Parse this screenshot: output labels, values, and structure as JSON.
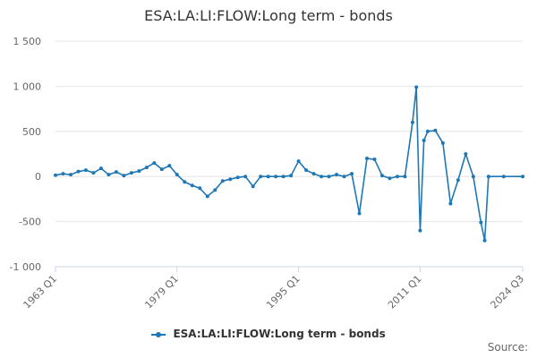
{
  "title": "ESA:LA:LI:FLOW:Long term - bonds",
  "source_label": "Source:",
  "colors": {
    "series": "#1f77b4",
    "grid": "#e6e6e6",
    "axis": "#ccd6eb"
  },
  "chart_data": {
    "type": "line",
    "title": "ESA:LA:LI:FLOW:Long term - bonds",
    "xlabel": "",
    "ylabel": "",
    "x_categories_start": "1963 Q1",
    "x_categories_end": "2024 Q3",
    "x_tick_labels": [
      "1963 Q1",
      "1979 Q1",
      "1995 Q1",
      "2011 Q1",
      "2024 Q3"
    ],
    "y_tick_labels": [
      "1 500",
      "1 000",
      "500",
      "0",
      "-500",
      "-1 000"
    ],
    "y_ticks": [
      1500,
      1000,
      500,
      0,
      -500,
      -1000
    ],
    "ylim": [
      -1000,
      1500
    ],
    "grid": true,
    "legend_position": "bottom-center",
    "series": [
      {
        "name": "ESA:LA:LI:FLOW:Long term - bonds",
        "points": [
          [
            "1963 Q1",
            15
          ],
          [
            "1964 Q1",
            30
          ],
          [
            "1965 Q1",
            20
          ],
          [
            "1966 Q1",
            55
          ],
          [
            "1967 Q1",
            70
          ],
          [
            "1968 Q1",
            40
          ],
          [
            "1969 Q1",
            90
          ],
          [
            "1970 Q1",
            20
          ],
          [
            "1971 Q1",
            50
          ],
          [
            "1972 Q1",
            10
          ],
          [
            "1973 Q1",
            40
          ],
          [
            "1974 Q1",
            60
          ],
          [
            "1975 Q1",
            100
          ],
          [
            "1976 Q1",
            150
          ],
          [
            "1977 Q1",
            80
          ],
          [
            "1978 Q1",
            120
          ],
          [
            "1979 Q1",
            20
          ],
          [
            "1980 Q1",
            -60
          ],
          [
            "1981 Q1",
            -100
          ],
          [
            "1982 Q1",
            -130
          ],
          [
            "1983 Q1",
            -220
          ],
          [
            "1984 Q1",
            -150
          ],
          [
            "1985 Q1",
            -50
          ],
          [
            "1986 Q1",
            -30
          ],
          [
            "1987 Q1",
            -10
          ],
          [
            "1988 Q1",
            0
          ],
          [
            "1989 Q1",
            -110
          ],
          [
            "1990 Q1",
            0
          ],
          [
            "1991 Q1",
            0
          ],
          [
            "1992 Q1",
            0
          ],
          [
            "1993 Q1",
            0
          ],
          [
            "1994 Q1",
            10
          ],
          [
            "1995 Q1",
            170
          ],
          [
            "1996 Q1",
            70
          ],
          [
            "1997 Q1",
            30
          ],
          [
            "1998 Q1",
            0
          ],
          [
            "1999 Q1",
            0
          ],
          [
            "2000 Q1",
            20
          ],
          [
            "2001 Q1",
            0
          ],
          [
            "2002 Q1",
            30
          ],
          [
            "2003 Q1",
            -410
          ],
          [
            "2004 Q1",
            200
          ],
          [
            "2005 Q1",
            190
          ],
          [
            "2006 Q1",
            10
          ],
          [
            "2007 Q1",
            -20
          ],
          [
            "2008 Q1",
            0
          ],
          [
            "2009 Q1",
            0
          ],
          [
            "2010 Q1",
            600
          ],
          [
            "2010 Q3",
            990
          ],
          [
            "2011 Q1",
            -600
          ],
          [
            "2011 Q3",
            400
          ],
          [
            "2012 Q1",
            500
          ],
          [
            "2013 Q1",
            510
          ],
          [
            "2014 Q1",
            370
          ],
          [
            "2015 Q1",
            -300
          ],
          [
            "2016 Q1",
            -40
          ],
          [
            "2017 Q1",
            250
          ],
          [
            "2018 Q1",
            0
          ],
          [
            "2019 Q1",
            -510
          ],
          [
            "2019 Q3",
            -710
          ],
          [
            "2020 Q1",
            0
          ],
          [
            "2022 Q1",
            0
          ],
          [
            "2024 Q3",
            0
          ]
        ]
      }
    ]
  }
}
